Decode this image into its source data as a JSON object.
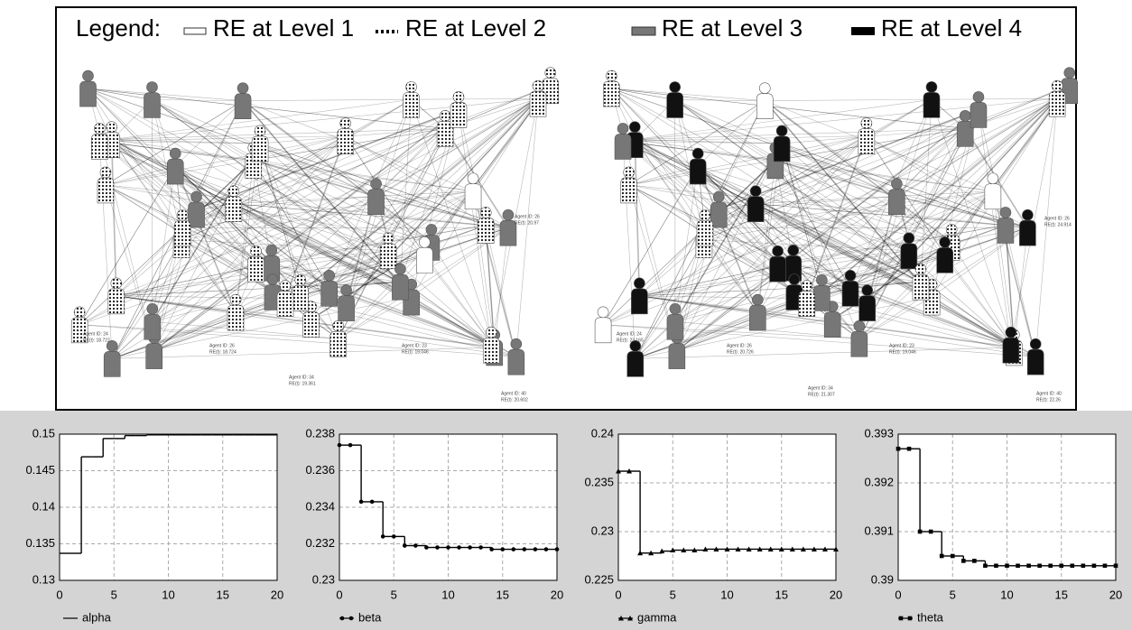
{
  "network": {
    "legend": {
      "title": "Legend:",
      "items": [
        "RE at Level 1",
        "RE at Level 2",
        "RE at Level 3",
        "RE at Level 4"
      ]
    },
    "panels": [
      {
        "labels": [
          {
            "id": "Agent ID: 24",
            "re": "RE(t): 18.722"
          },
          {
            "id": "Agent ID: 26",
            "re": "RE(t): 18.724"
          },
          {
            "id": "Agent ID: 23",
            "re": "RE(t): 19.046"
          },
          {
            "id": "Agent ID: 34",
            "re": "RE(t): 19.361"
          },
          {
            "id": "Agent ID: 26",
            "re": "RE(t): 20.97"
          },
          {
            "id": "Agent ID: 40",
            "re": "RE(t): 20.602"
          }
        ]
      },
      {
        "labels": [
          {
            "id": "Agent ID: 24",
            "re": "RE(t): 23.165"
          },
          {
            "id": "Agent ID: 26",
            "re": "RE(t): 20.726"
          },
          {
            "id": "Agent ID: 23",
            "re": "RE(t): 19.046"
          },
          {
            "id": "Agent ID: 34",
            "re": "RE(t): 21.307"
          },
          {
            "id": "Agent ID: 26",
            "re": "RE(t): 24.914"
          },
          {
            "id": "Agent ID: 40",
            "re": "RE(t): 22.26"
          }
        ]
      }
    ]
  },
  "chart_data": [
    {
      "type": "step",
      "marker": "none",
      "xlim": [
        0,
        20
      ],
      "xticks": [
        0,
        5,
        10,
        15,
        20
      ],
      "ylim": [
        0.13,
        0.15
      ],
      "yticks": [
        0.13,
        0.135,
        0.14,
        0.145,
        0.15
      ],
      "grid": true,
      "x": [
        0,
        1,
        2,
        3,
        4,
        5,
        6,
        7,
        8,
        9,
        10,
        11,
        12,
        13,
        14,
        15,
        16,
        17,
        18,
        19,
        20
      ],
      "series": [
        {
          "name": "alpha",
          "color": "#000000",
          "values": [
            0.1337,
            0.1337,
            0.1469,
            0.1469,
            0.1494,
            0.1494,
            0.1498,
            0.1498,
            0.1499,
            0.1499,
            0.1499,
            0.1499,
            0.1499,
            0.1499,
            0.1499,
            0.1499,
            0.1499,
            0.1499,
            0.1499,
            0.1499,
            0.1499
          ]
        }
      ]
    },
    {
      "type": "step",
      "marker": "circle",
      "xlim": [
        0,
        20
      ],
      "xticks": [
        0,
        5,
        10,
        15,
        20
      ],
      "ylim": [
        0.23,
        0.238
      ],
      "yticks": [
        0.23,
        0.232,
        0.234,
        0.236,
        0.238
      ],
      "grid": true,
      "x": [
        0,
        1,
        2,
        3,
        4,
        5,
        6,
        7,
        8,
        9,
        10,
        11,
        12,
        13,
        14,
        15,
        16,
        17,
        18,
        19,
        20
      ],
      "series": [
        {
          "name": "beta",
          "color": "#000000",
          "values": [
            0.2374,
            0.2374,
            0.2343,
            0.2343,
            0.2324,
            0.2324,
            0.2319,
            0.2319,
            0.2318,
            0.2318,
            0.2318,
            0.2318,
            0.2318,
            0.2318,
            0.2317,
            0.2317,
            0.2317,
            0.2317,
            0.2317,
            0.2317,
            0.2317
          ]
        }
      ]
    },
    {
      "type": "step",
      "marker": "triangle",
      "xlim": [
        0,
        20
      ],
      "xticks": [
        0,
        5,
        10,
        15,
        20
      ],
      "ylim": [
        0.225,
        0.24
      ],
      "yticks": [
        0.225,
        0.23,
        0.235,
        0.24
      ],
      "grid": true,
      "x": [
        0,
        1,
        2,
        3,
        4,
        5,
        6,
        7,
        8,
        9,
        10,
        11,
        12,
        13,
        14,
        15,
        16,
        17,
        18,
        19,
        20
      ],
      "series": [
        {
          "name": "gamma",
          "color": "#000000",
          "values": [
            0.2362,
            0.2362,
            0.2278,
            0.2278,
            0.228,
            0.2281,
            0.2281,
            0.2281,
            0.2282,
            0.2282,
            0.2282,
            0.2282,
            0.2282,
            0.2282,
            0.2282,
            0.2282,
            0.2282,
            0.2282,
            0.2282,
            0.2282,
            0.2282
          ]
        }
      ]
    },
    {
      "type": "step",
      "marker": "square",
      "xlim": [
        0,
        20
      ],
      "xticks": [
        0,
        5,
        10,
        15,
        20
      ],
      "ylim": [
        0.39,
        0.393
      ],
      "yticks": [
        0.39,
        0.391,
        0.392,
        0.393
      ],
      "grid": true,
      "x": [
        0,
        1,
        2,
        3,
        4,
        5,
        6,
        7,
        8,
        9,
        10,
        11,
        12,
        13,
        14,
        15,
        16,
        17,
        18,
        19,
        20
      ],
      "series": [
        {
          "name": "theta",
          "color": "#000000",
          "values": [
            0.3927,
            0.3927,
            0.391,
            0.391,
            0.3905,
            0.3905,
            0.3904,
            0.3904,
            0.3903,
            0.3903,
            0.3903,
            0.3903,
            0.3903,
            0.3903,
            0.3903,
            0.3903,
            0.3903,
            0.3903,
            0.3903,
            0.3903,
            0.3903
          ]
        }
      ]
    }
  ]
}
